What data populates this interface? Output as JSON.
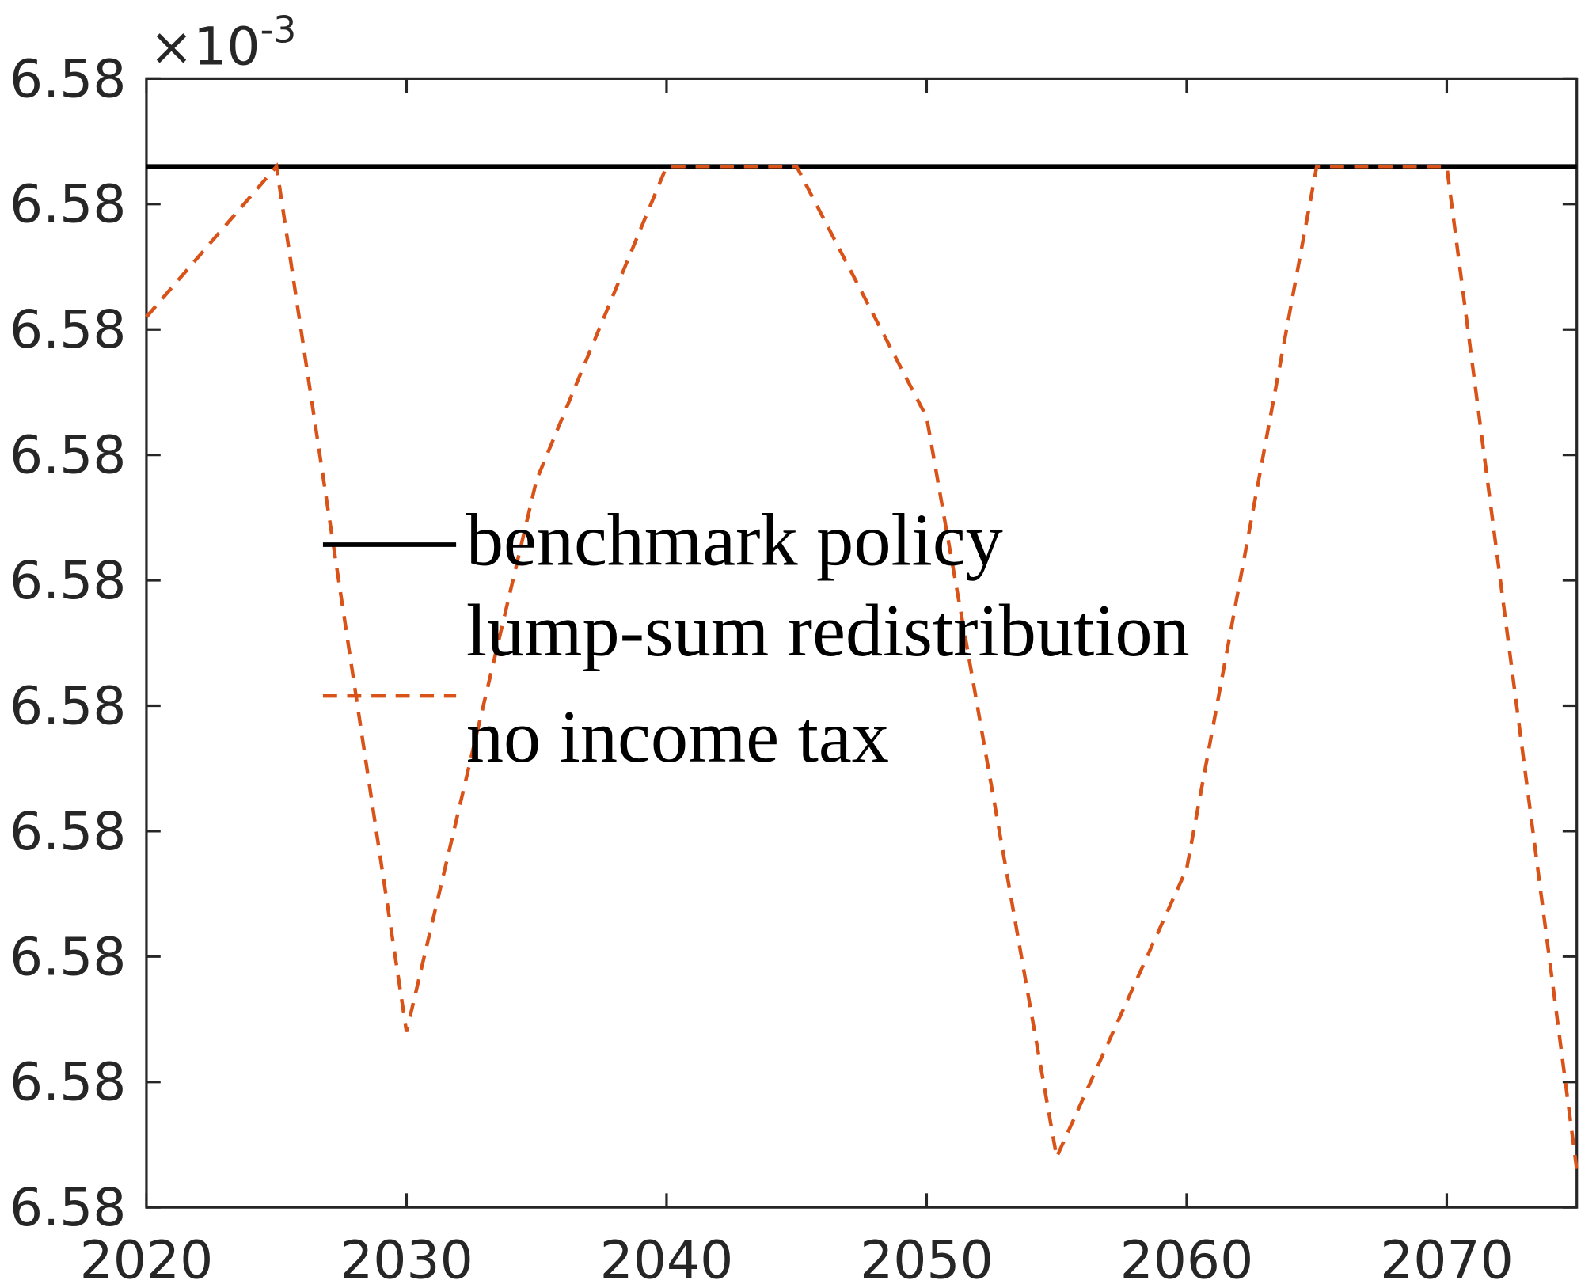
{
  "chart_data": {
    "type": "line",
    "multiplier": "×10",
    "multiplier_exponent": "-3",
    "x": [
      2020,
      2025,
      2030,
      2035,
      2040,
      2045,
      2050,
      2055,
      2060,
      2065,
      2070,
      2075
    ],
    "series": [
      {
        "name": "benchmark policy",
        "color": "#000000",
        "dash": "solid",
        "values": [
          6.580083,
          6.580083,
          6.580083,
          6.580083,
          6.580083,
          6.580083,
          6.580083,
          6.580083,
          6.580083,
          6.580083,
          6.580083,
          6.580083
        ]
      },
      {
        "name": "lump-sum redistribution",
        "color": "none",
        "dash": "solid",
        "values": [
          6.580083,
          6.580083,
          6.580083,
          6.580083,
          6.580083,
          6.580083,
          6.580083,
          6.580083,
          6.580083,
          6.580083,
          6.580083,
          6.580083
        ]
      },
      {
        "name": "no income tax",
        "color": "#d95319",
        "dash": "dashed",
        "values": [
          6.580071,
          6.580083,
          6.580014,
          6.580058,
          6.580083,
          6.580083,
          6.580063,
          6.580004,
          6.580027,
          6.580083,
          6.580083,
          6.580003
        ]
      }
    ],
    "xlim": [
      2020,
      2075
    ],
    "xticks": [
      2020,
      2030,
      2040,
      2050,
      2060,
      2070
    ],
    "ylim": [
      6.58,
      6.58009
    ],
    "yticks": [
      {
        "value": 6.58,
        "label": "6.58"
      },
      {
        "value": 6.58001,
        "label": "6.58"
      },
      {
        "value": 6.58002,
        "label": "6.58"
      },
      {
        "value": 6.58003,
        "label": "6.58"
      },
      {
        "value": 6.58004,
        "label": "6.58"
      },
      {
        "value": 6.58005,
        "label": "6.58"
      },
      {
        "value": 6.58006,
        "label": "6.58"
      },
      {
        "value": 6.58007,
        "label": "6.58"
      },
      {
        "value": 6.58008,
        "label": "6.58"
      },
      {
        "value": 6.58009,
        "label": "6.58"
      }
    ],
    "grid": false,
    "legend": "center"
  }
}
